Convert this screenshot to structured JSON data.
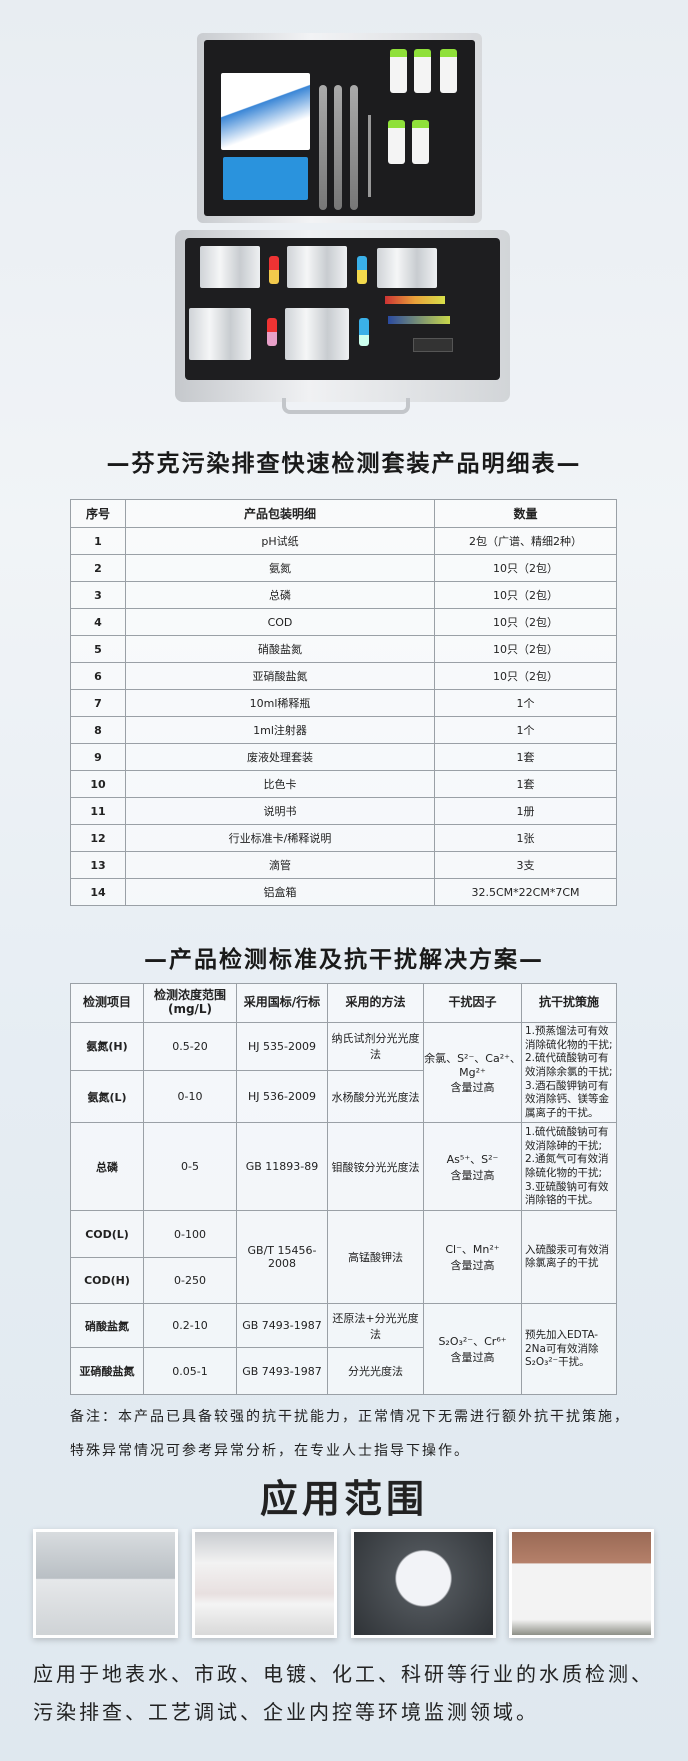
{
  "title1": "—芬克污染排查快速检测套装产品明细表—",
  "table1": {
    "headers": [
      "序号",
      "产品包装明细",
      "数量"
    ],
    "rows": [
      [
        "1",
        "pH试纸",
        "2包（广谱、精细2种）"
      ],
      [
        "2",
        "氨氮",
        "10只（2包）"
      ],
      [
        "3",
        "总磷",
        "10只（2包）"
      ],
      [
        "4",
        "COD",
        "10只（2包）"
      ],
      [
        "5",
        "硝酸盐氮",
        "10只（2包）"
      ],
      [
        "6",
        "亚硝酸盐氮",
        "10只（2包）"
      ],
      [
        "7",
        "10ml稀释瓶",
        "1个"
      ],
      [
        "8",
        "1ml注射器",
        "1个"
      ],
      [
        "9",
        "废液处理套装",
        "1套"
      ],
      [
        "10",
        "比色卡",
        "1套"
      ],
      [
        "11",
        "说明书",
        "1册"
      ],
      [
        "12",
        "行业标准卡/稀释说明",
        "1张"
      ],
      [
        "13",
        "滴管",
        "3支"
      ],
      [
        "14",
        "铝盒箱",
        "32.5CM*22CM*7CM"
      ]
    ]
  },
  "title2": "—产品检测标准及抗干扰解决方案—",
  "table2": {
    "headers": [
      "检测项目",
      "检测浓度范围(mg/L)",
      "采用国标/行标",
      "采用的方法",
      "干扰因子",
      "抗干扰策施"
    ],
    "rows": [
      {
        "item": "氨氮(H)",
        "range": "0.5-20",
        "standard": "HJ 535-2009",
        "method": "纳氏试剂分光光度法"
      },
      {
        "item": "氨氮(L)",
        "range": "0-10",
        "standard": "HJ 536-2009",
        "method": "水杨酸分光光度法"
      },
      {
        "item": "总磷",
        "range": "0-5",
        "standard": "GB 11893-89",
        "method": "钼酸铵分光光度法"
      },
      {
        "item": "COD(L)",
        "range": "0-100",
        "standard": "GB/T 15456-2008",
        "method": "高锰酸钾法"
      },
      {
        "item": "COD(H)",
        "range": "0-250"
      },
      {
        "item": "硝酸盐氮",
        "range": "0.2-10",
        "standard": "GB 7493-1987",
        "method": "还原法+分光光度法"
      },
      {
        "item": "亚硝酸盐氮",
        "range": "0.05-1",
        "standard": "GB 7493-1987",
        "method": "分光光度法"
      }
    ],
    "groups": [
      {
        "factor": "余氯、S²⁻、Ca²⁺、Mg²⁺",
        "factor_suffix": "含量过高",
        "measures": [
          "1.预蒸馏法可有效消除硫化物的干扰;",
          "2.硫代硫酸钠可有效消除余氯的干扰;",
          "3.酒石酸钾钠可有效消除钙、镁等金属离子的干扰。"
        ]
      },
      {
        "factor": "As⁵⁺、S²⁻",
        "factor_suffix": "含量过高",
        "measures": [
          "1.硫代硫酸钠可有效消除砷的干扰;",
          "2.通氮气可有效消除硫化物的干扰;",
          "3.亚硫酸钠可有效消除铬的干扰。"
        ]
      },
      {
        "factor": "Cl⁻、Mn²⁺",
        "factor_suffix": "含量过高",
        "measures": [
          "入硫酸汞可有效消除氯离子的干扰"
        ]
      },
      {
        "factor": "S₂O₃²⁻、Cr⁶⁺",
        "factor_suffix": "含量过高",
        "measures": [
          "预先加入EDTA-2Na可有效消除S₂O₃²⁻干扰。"
        ]
      }
    ]
  },
  "note": "备注：本产品已具备较强的抗干扰能力，正常情况下无需进行额外抗干扰策施，特殊异常情况可参考异常分析，在专业人士指导下操作。",
  "application": {
    "heading": "应用范围",
    "description": "应用于地表水、市政、电镀、化工、科研等行业的水质检测、污染排查、工艺调试、企业内控等环境监测领域。"
  }
}
